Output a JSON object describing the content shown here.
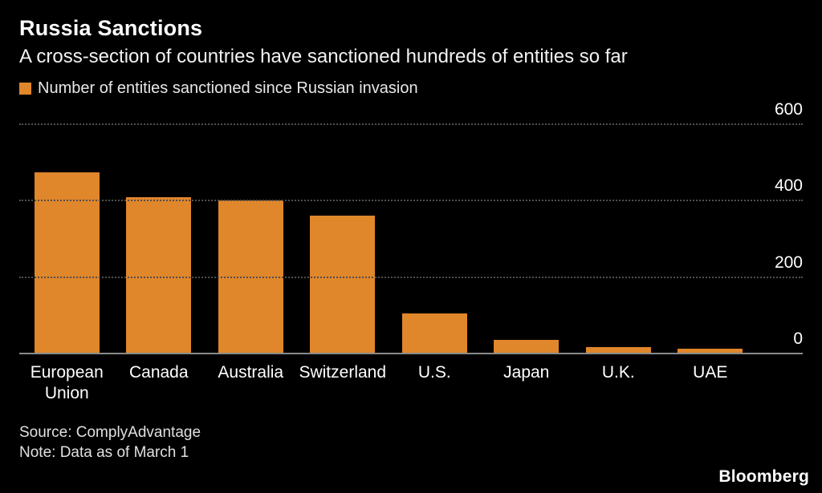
{
  "header": {
    "title": "Russia Sanctions",
    "subtitle": "A cross-section of countries have sanctioned hundreds of entities so far"
  },
  "legend": {
    "label": "Number of entities sanctioned since Russian invasion",
    "swatch_color": "#E0862B"
  },
  "chart_data": {
    "type": "bar",
    "title": "Russia Sanctions",
    "subtitle": "A cross-section of countries have sanctioned hundreds of entities so far",
    "legend_label": "Number of entities sanctioned since Russian invasion",
    "categories": [
      "European Union",
      "Canada",
      "Australia",
      "Switzerland",
      "U.S.",
      "Japan",
      "U.K.",
      "UAE"
    ],
    "values": [
      475,
      410,
      400,
      360,
      105,
      35,
      16,
      13
    ],
    "xlabel": "",
    "ylabel": "",
    "ylim": [
      0,
      600
    ],
    "yticks": [
      0,
      200,
      400,
      600
    ],
    "ytick_position": "right",
    "grid": "horizontal-dotted",
    "bar_color": "#E0862B",
    "background_color": "#000000"
  },
  "footer": {
    "source": "Source: ComplyAdvantage",
    "note": "Note: Data as of March 1",
    "brand": "Bloomberg"
  }
}
